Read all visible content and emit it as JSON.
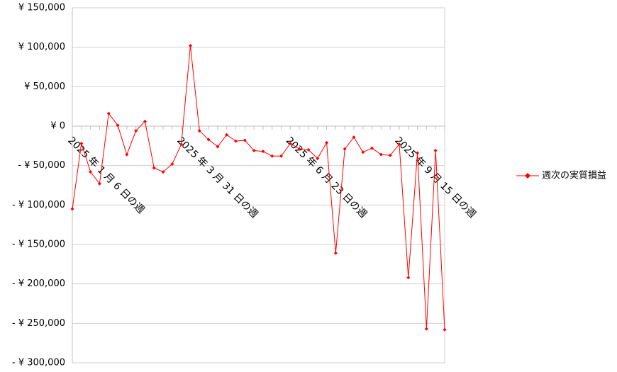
{
  "chart_data": {
    "type": "line",
    "categories": [
      "2025 年 1 月 6 日の週",
      null,
      null,
      null,
      null,
      null,
      null,
      null,
      null,
      null,
      null,
      null,
      "2025 年 3 月 31 日の週",
      null,
      null,
      null,
      null,
      null,
      null,
      null,
      null,
      null,
      null,
      null,
      "2025 年 6 月 23 日の週",
      null,
      null,
      null,
      null,
      null,
      null,
      null,
      null,
      null,
      null,
      null,
      "2025 年 9 月 15 日の週",
      null,
      null,
      null,
      null,
      null
    ],
    "series": [
      {
        "name": "週次の実質損益",
        "color": "#ff0000",
        "values": [
          -105000,
          -22000,
          -58000,
          -73000,
          16000,
          1000,
          -36000,
          -6000,
          6000,
          -53000,
          -58000,
          -48000,
          -23000,
          102000,
          -6000,
          -17000,
          -26000,
          -11000,
          -19000,
          -18000,
          -31000,
          -32000,
          -38000,
          -38000,
          -22000,
          -29000,
          -30000,
          -41000,
          -21000,
          -161000,
          -29000,
          -14000,
          -33000,
          -28000,
          -36000,
          -37000,
          -23000,
          -192000,
          -34000,
          -257000,
          -31000,
          -258000
        ]
      }
    ],
    "ylim": [
      -300000,
      150000
    ],
    "yticks": [
      {
        "value": -300000,
        "label": "- ¥ 300,000"
      },
      {
        "value": -250000,
        "label": "- ¥ 250,000"
      },
      {
        "value": -200000,
        "label": "- ¥ 200,000"
      },
      {
        "value": -150000,
        "label": "- ¥ 150,000"
      },
      {
        "value": -100000,
        "label": "- ¥ 100,000"
      },
      {
        "value": -50000,
        "label": "- ¥ 50,000"
      },
      {
        "value": 0,
        "label": "¥ 0"
      },
      {
        "value": 50000,
        "label": "¥ 50,000"
      },
      {
        "value": 100000,
        "label": "¥ 100,000"
      },
      {
        "value": 150000,
        "label": "¥ 150,000"
      }
    ],
    "negative_label_color": "#ff0000",
    "grid": true,
    "legend": "right"
  }
}
